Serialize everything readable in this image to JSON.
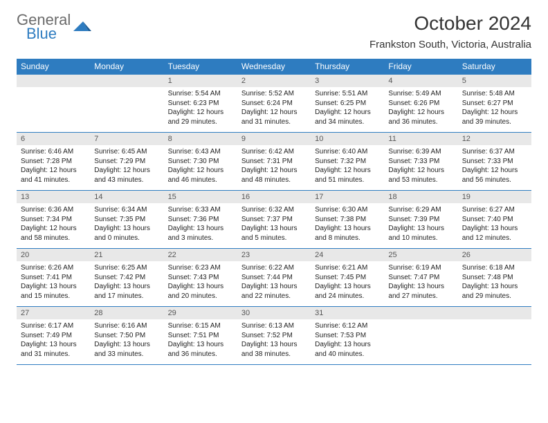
{
  "logo": {
    "line1": "General",
    "line2": "Blue"
  },
  "title": "October 2024",
  "location": "Frankston South, Victoria, Australia",
  "colors": {
    "header_bg": "#2e7cc0",
    "header_text": "#ffffff",
    "daynum_bg": "#e8e8e8",
    "border": "#2e7cc0",
    "text": "#222222"
  },
  "weekdays": [
    "Sunday",
    "Monday",
    "Tuesday",
    "Wednesday",
    "Thursday",
    "Friday",
    "Saturday"
  ],
  "weeks": [
    [
      null,
      null,
      {
        "n": "1",
        "sr": "5:54 AM",
        "ss": "6:23 PM",
        "dl": "12 hours and 29 minutes."
      },
      {
        "n": "2",
        "sr": "5:52 AM",
        "ss": "6:24 PM",
        "dl": "12 hours and 31 minutes."
      },
      {
        "n": "3",
        "sr": "5:51 AM",
        "ss": "6:25 PM",
        "dl": "12 hours and 34 minutes."
      },
      {
        "n": "4",
        "sr": "5:49 AM",
        "ss": "6:26 PM",
        "dl": "12 hours and 36 minutes."
      },
      {
        "n": "5",
        "sr": "5:48 AM",
        "ss": "6:27 PM",
        "dl": "12 hours and 39 minutes."
      }
    ],
    [
      {
        "n": "6",
        "sr": "6:46 AM",
        "ss": "7:28 PM",
        "dl": "12 hours and 41 minutes."
      },
      {
        "n": "7",
        "sr": "6:45 AM",
        "ss": "7:29 PM",
        "dl": "12 hours and 43 minutes."
      },
      {
        "n": "8",
        "sr": "6:43 AM",
        "ss": "7:30 PM",
        "dl": "12 hours and 46 minutes."
      },
      {
        "n": "9",
        "sr": "6:42 AM",
        "ss": "7:31 PM",
        "dl": "12 hours and 48 minutes."
      },
      {
        "n": "10",
        "sr": "6:40 AM",
        "ss": "7:32 PM",
        "dl": "12 hours and 51 minutes."
      },
      {
        "n": "11",
        "sr": "6:39 AM",
        "ss": "7:33 PM",
        "dl": "12 hours and 53 minutes."
      },
      {
        "n": "12",
        "sr": "6:37 AM",
        "ss": "7:33 PM",
        "dl": "12 hours and 56 minutes."
      }
    ],
    [
      {
        "n": "13",
        "sr": "6:36 AM",
        "ss": "7:34 PM",
        "dl": "12 hours and 58 minutes."
      },
      {
        "n": "14",
        "sr": "6:34 AM",
        "ss": "7:35 PM",
        "dl": "13 hours and 0 minutes."
      },
      {
        "n": "15",
        "sr": "6:33 AM",
        "ss": "7:36 PM",
        "dl": "13 hours and 3 minutes."
      },
      {
        "n": "16",
        "sr": "6:32 AM",
        "ss": "7:37 PM",
        "dl": "13 hours and 5 minutes."
      },
      {
        "n": "17",
        "sr": "6:30 AM",
        "ss": "7:38 PM",
        "dl": "13 hours and 8 minutes."
      },
      {
        "n": "18",
        "sr": "6:29 AM",
        "ss": "7:39 PM",
        "dl": "13 hours and 10 minutes."
      },
      {
        "n": "19",
        "sr": "6:27 AM",
        "ss": "7:40 PM",
        "dl": "13 hours and 12 minutes."
      }
    ],
    [
      {
        "n": "20",
        "sr": "6:26 AM",
        "ss": "7:41 PM",
        "dl": "13 hours and 15 minutes."
      },
      {
        "n": "21",
        "sr": "6:25 AM",
        "ss": "7:42 PM",
        "dl": "13 hours and 17 minutes."
      },
      {
        "n": "22",
        "sr": "6:23 AM",
        "ss": "7:43 PM",
        "dl": "13 hours and 20 minutes."
      },
      {
        "n": "23",
        "sr": "6:22 AM",
        "ss": "7:44 PM",
        "dl": "13 hours and 22 minutes."
      },
      {
        "n": "24",
        "sr": "6:21 AM",
        "ss": "7:45 PM",
        "dl": "13 hours and 24 minutes."
      },
      {
        "n": "25",
        "sr": "6:19 AM",
        "ss": "7:47 PM",
        "dl": "13 hours and 27 minutes."
      },
      {
        "n": "26",
        "sr": "6:18 AM",
        "ss": "7:48 PM",
        "dl": "13 hours and 29 minutes."
      }
    ],
    [
      {
        "n": "27",
        "sr": "6:17 AM",
        "ss": "7:49 PM",
        "dl": "13 hours and 31 minutes."
      },
      {
        "n": "28",
        "sr": "6:16 AM",
        "ss": "7:50 PM",
        "dl": "13 hours and 33 minutes."
      },
      {
        "n": "29",
        "sr": "6:15 AM",
        "ss": "7:51 PM",
        "dl": "13 hours and 36 minutes."
      },
      {
        "n": "30",
        "sr": "6:13 AM",
        "ss": "7:52 PM",
        "dl": "13 hours and 38 minutes."
      },
      {
        "n": "31",
        "sr": "6:12 AM",
        "ss": "7:53 PM",
        "dl": "13 hours and 40 minutes."
      },
      null,
      null
    ]
  ],
  "labels": {
    "sunrise": "Sunrise: ",
    "sunset": "Sunset: ",
    "daylight": "Daylight: "
  }
}
